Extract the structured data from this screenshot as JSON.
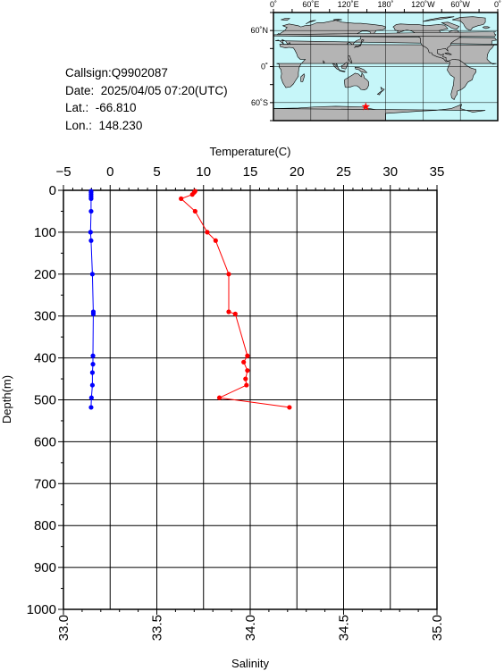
{
  "station": {
    "callsign": "Callsign:Q9902087",
    "date": "Date:  2025/04/05 07:20(UTC)",
    "lat": "Lat.:  -66.810",
    "lon": "Lon.:  148.230"
  },
  "map": {
    "top_labels": [
      "0˚",
      "60˚E",
      "120˚E",
      "180˚",
      "120˚W",
      "60˚W",
      "0˚"
    ],
    "side_labels": [
      "60˚N",
      "0˚",
      "60˚S"
    ],
    "ocean_color": "#c6f6f9",
    "land_color": "#b4b4b4",
    "marker_color": "#ff0000",
    "marker_icon": "star-icon"
  },
  "chart_data": {
    "type": "line",
    "y_axis": {
      "label": "Depth(m)",
      "range": [
        0,
        1000
      ],
      "ticks": [
        "0",
        "100",
        "200",
        "300",
        "400",
        "500",
        "600",
        "700",
        "800",
        "900",
        "1000"
      ],
      "inverted": true
    },
    "temperature_axis": {
      "label": "Temperature(C)",
      "position": "top",
      "range": [
        -5,
        35
      ],
      "ticks": [
        "−5",
        "0",
        "5",
        "10",
        "15",
        "20",
        "25",
        "30",
        "35"
      ]
    },
    "salinity_axis": {
      "label": "Salinity",
      "position": "bottom",
      "range": [
        33.0,
        35.0
      ],
      "ticks": [
        "33.0",
        "33.5",
        "34.0",
        "34.5",
        "35.0"
      ]
    },
    "grid": true,
    "series": [
      {
        "axis": "temperature",
        "color": "#ff0000",
        "points": [
          {
            "depth": 2,
            "value": 9.1
          },
          {
            "depth": 5,
            "value": 9.0
          },
          {
            "depth": 10,
            "value": 8.8
          },
          {
            "depth": 20,
            "value": 7.6
          },
          {
            "depth": 50,
            "value": 9.1
          },
          {
            "depth": 100,
            "value": 10.4
          },
          {
            "depth": 120,
            "value": 11.3
          },
          {
            "depth": 200,
            "value": 12.7
          },
          {
            "depth": 290,
            "value": 12.7
          },
          {
            "depth": 295,
            "value": 13.4
          },
          {
            "depth": 395,
            "value": 14.7
          },
          {
            "depth": 410,
            "value": 14.3
          },
          {
            "depth": 430,
            "value": 14.7
          },
          {
            "depth": 450,
            "value": 14.5
          },
          {
            "depth": 465,
            "value": 14.6
          },
          {
            "depth": 495,
            "value": 11.7
          },
          {
            "depth": 518,
            "value": 19.2
          }
        ]
      },
      {
        "axis": "salinity",
        "color": "#0000ff",
        "points": [
          {
            "depth": 2,
            "value": 33.148
          },
          {
            "depth": 5,
            "value": 33.148
          },
          {
            "depth": 10,
            "value": 33.148
          },
          {
            "depth": 15,
            "value": 33.148
          },
          {
            "depth": 20,
            "value": 33.148
          },
          {
            "depth": 50,
            "value": 33.148
          },
          {
            "depth": 100,
            "value": 33.145
          },
          {
            "depth": 120,
            "value": 33.148
          },
          {
            "depth": 200,
            "value": 33.155
          },
          {
            "depth": 290,
            "value": 33.16
          },
          {
            "depth": 295,
            "value": 33.16
          },
          {
            "depth": 395,
            "value": 33.158
          },
          {
            "depth": 415,
            "value": 33.158
          },
          {
            "depth": 435,
            "value": 33.155
          },
          {
            "depth": 465,
            "value": 33.155
          },
          {
            "depth": 495,
            "value": 33.15
          },
          {
            "depth": 518,
            "value": 33.148
          }
        ]
      }
    ]
  }
}
